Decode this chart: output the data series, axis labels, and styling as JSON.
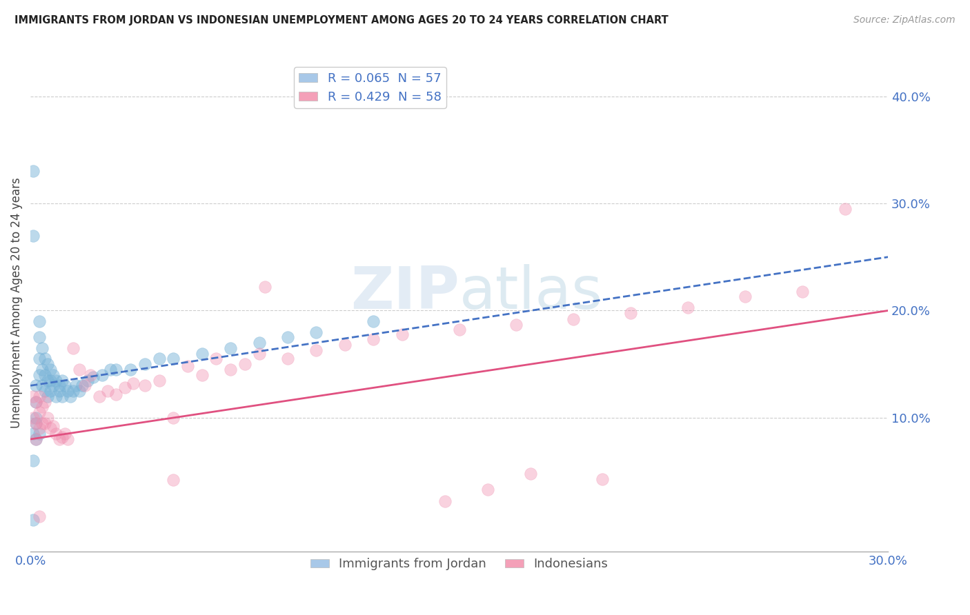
{
  "title": "IMMIGRANTS FROM JORDAN VS INDONESIAN UNEMPLOYMENT AMONG AGES 20 TO 24 YEARS CORRELATION CHART",
  "source": "Source: ZipAtlas.com",
  "ylabel": "Unemployment Among Ages 20 to 24 years",
  "ylabel_right_ticks": [
    "40.0%",
    "30.0%",
    "20.0%",
    "10.0%"
  ],
  "ylabel_right_vals": [
    0.4,
    0.3,
    0.2,
    0.1
  ],
  "legend1_label": "R = 0.065  N = 57",
  "legend2_label": "R = 0.429  N = 58",
  "legend_color1": "#a8c8e8",
  "legend_color2": "#f4a0b8",
  "color_jordan": "#7ab4d8",
  "color_indonesian": "#f090b0",
  "watermark_zip": "ZIP",
  "watermark_atlas": "atlas",
  "xmin": 0.0,
  "xmax": 0.3,
  "ymin": -0.025,
  "ymax": 0.44,
  "jordan_line_x": [
    0.0,
    0.3
  ],
  "jordan_line_y": [
    0.13,
    0.25
  ],
  "indonesian_line_x": [
    0.0,
    0.3
  ],
  "indonesian_line_y": [
    0.08,
    0.2
  ],
  "jordan_x": [
    0.001,
    0.001,
    0.001,
    0.002,
    0.002,
    0.002,
    0.002,
    0.003,
    0.003,
    0.003,
    0.003,
    0.004,
    0.004,
    0.004,
    0.005,
    0.005,
    0.005,
    0.006,
    0.006,
    0.006,
    0.007,
    0.007,
    0.007,
    0.008,
    0.008,
    0.009,
    0.009,
    0.01,
    0.01,
    0.011,
    0.011,
    0.012,
    0.013,
    0.014,
    0.015,
    0.016,
    0.017,
    0.018,
    0.02,
    0.022,
    0.025,
    0.028,
    0.03,
    0.035,
    0.04,
    0.045,
    0.05,
    0.06,
    0.07,
    0.08,
    0.09,
    0.1,
    0.12,
    0.003,
    0.002,
    0.001,
    0.001
  ],
  "jordan_y": [
    0.33,
    0.27,
    0.085,
    0.13,
    0.115,
    0.1,
    0.095,
    0.19,
    0.175,
    0.155,
    0.14,
    0.165,
    0.145,
    0.13,
    0.155,
    0.14,
    0.125,
    0.15,
    0.135,
    0.12,
    0.145,
    0.135,
    0.125,
    0.14,
    0.13,
    0.135,
    0.12,
    0.13,
    0.125,
    0.135,
    0.12,
    0.13,
    0.125,
    0.12,
    0.125,
    0.13,
    0.125,
    0.13,
    0.135,
    0.138,
    0.14,
    0.145,
    0.145,
    0.145,
    0.15,
    0.155,
    0.155,
    0.16,
    0.165,
    0.17,
    0.175,
    0.18,
    0.19,
    0.085,
    0.08,
    0.06,
    0.005
  ],
  "indonesian_x": [
    0.001,
    0.001,
    0.002,
    0.002,
    0.002,
    0.003,
    0.003,
    0.003,
    0.004,
    0.004,
    0.005,
    0.005,
    0.006,
    0.007,
    0.008,
    0.009,
    0.01,
    0.011,
    0.012,
    0.013,
    0.015,
    0.017,
    0.019,
    0.021,
    0.024,
    0.027,
    0.03,
    0.033,
    0.036,
    0.04,
    0.045,
    0.05,
    0.055,
    0.06,
    0.065,
    0.07,
    0.075,
    0.08,
    0.09,
    0.1,
    0.11,
    0.12,
    0.13,
    0.15,
    0.17,
    0.19,
    0.21,
    0.23,
    0.25,
    0.27,
    0.285,
    0.145,
    0.16,
    0.175,
    0.2,
    0.05,
    0.082,
    0.003
  ],
  "indonesian_y": [
    0.1,
    0.12,
    0.08,
    0.095,
    0.115,
    0.09,
    0.105,
    0.12,
    0.095,
    0.11,
    0.095,
    0.115,
    0.1,
    0.09,
    0.092,
    0.085,
    0.08,
    0.082,
    0.085,
    0.08,
    0.165,
    0.145,
    0.13,
    0.14,
    0.12,
    0.125,
    0.122,
    0.128,
    0.132,
    0.13,
    0.135,
    0.1,
    0.148,
    0.14,
    0.155,
    0.145,
    0.15,
    0.16,
    0.155,
    0.163,
    0.168,
    0.173,
    0.178,
    0.182,
    0.187,
    0.192,
    0.198,
    0.203,
    0.213,
    0.218,
    0.295,
    0.022,
    0.033,
    0.048,
    0.043,
    0.042,
    0.222,
    0.008
  ]
}
